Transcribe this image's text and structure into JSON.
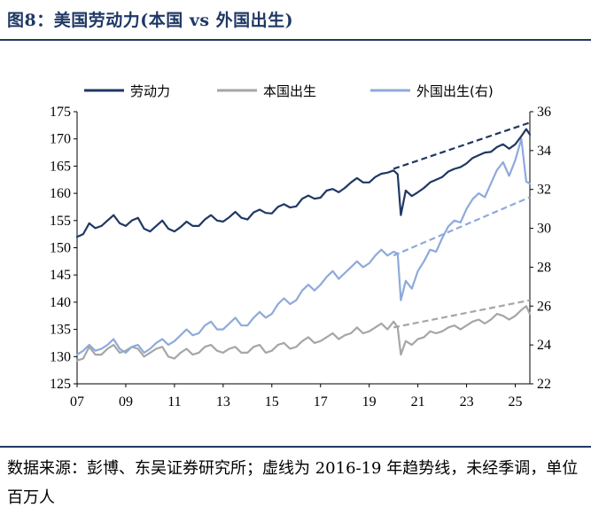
{
  "figure": {
    "title": "图8：美国劳动力(本国 vs 外国出生)",
    "source": "数据来源：彭博、东吴证券研究所；虚线为 2016-19 年趋势线，未经季调，单位百万人"
  },
  "colors": {
    "labor_force": "#1f3864",
    "native": "#a6a6a6",
    "foreign": "#8eaadb",
    "rule": "#1f3864"
  },
  "chart_data": {
    "type": "line",
    "title": "",
    "x_ticks": [
      "07",
      "09",
      "11",
      "13",
      "15",
      "17",
      "19",
      "21",
      "23",
      "25"
    ],
    "x_tick_years": [
      2007,
      2009,
      2011,
      2013,
      2015,
      2017,
      2019,
      2021,
      2023,
      2025
    ],
    "xlim": [
      2007,
      2025.6
    ],
    "y_left": {
      "ticks": [
        125,
        130,
        135,
        140,
        145,
        150,
        155,
        160,
        165,
        170,
        175
      ],
      "lim": [
        125,
        175
      ]
    },
    "y_right": {
      "ticks": [
        22,
        24,
        26,
        28,
        30,
        32,
        34,
        36
      ],
      "lim": [
        22,
        36
      ]
    },
    "legend_position": "top",
    "series": [
      {
        "name": "劳动力",
        "axis": "left",
        "x": [
          2007.0,
          2007.25,
          2007.5,
          2007.75,
          2008.0,
          2008.25,
          2008.5,
          2008.75,
          2009.0,
          2009.25,
          2009.5,
          2009.75,
          2010.0,
          2010.25,
          2010.5,
          2010.75,
          2011.0,
          2011.25,
          2011.5,
          2011.75,
          2012.0,
          2012.25,
          2012.5,
          2012.75,
          2013.0,
          2013.25,
          2013.5,
          2013.75,
          2014.0,
          2014.25,
          2014.5,
          2014.75,
          2015.0,
          2015.25,
          2015.5,
          2015.75,
          2016.0,
          2016.25,
          2016.5,
          2016.75,
          2017.0,
          2017.25,
          2017.5,
          2017.75,
          2018.0,
          2018.25,
          2018.5,
          2018.75,
          2019.0,
          2019.25,
          2019.5,
          2019.75,
          2020.0,
          2020.17,
          2020.3,
          2020.5,
          2020.75,
          2021.0,
          2021.25,
          2021.5,
          2021.75,
          2022.0,
          2022.25,
          2022.5,
          2022.75,
          2023.0,
          2023.25,
          2023.5,
          2023.75,
          2024.0,
          2024.25,
          2024.5,
          2024.75,
          2025.0,
          2025.25,
          2025.45,
          2025.6
        ],
        "values": [
          152.0,
          152.5,
          154.5,
          153.6,
          154.0,
          155.0,
          156.0,
          154.5,
          154.0,
          155.0,
          155.5,
          153.5,
          153.0,
          154.0,
          155.0,
          153.5,
          153.0,
          153.8,
          154.8,
          154.0,
          154.0,
          155.2,
          156.0,
          155.0,
          154.8,
          155.6,
          156.6,
          155.5,
          155.2,
          156.5,
          157.0,
          156.4,
          156.3,
          157.5,
          158.0,
          157.4,
          157.6,
          159.0,
          159.6,
          159.0,
          159.2,
          160.5,
          160.8,
          160.2,
          161.0,
          162.0,
          162.8,
          162.0,
          162.0,
          163.0,
          163.6,
          163.8,
          164.2,
          163.5,
          156.0,
          160.5,
          159.5,
          160.2,
          161.0,
          162.0,
          162.5,
          163.0,
          164.0,
          164.5,
          164.8,
          165.5,
          166.5,
          167.0,
          167.5,
          167.6,
          168.5,
          169.0,
          168.2,
          169.0,
          170.5,
          171.8,
          170.8
        ]
      },
      {
        "name": "本国出生",
        "axis": "right",
        "x": [
          2007.0,
          2007.25,
          2007.5,
          2007.75,
          2008.0,
          2008.25,
          2008.5,
          2008.75,
          2009.0,
          2009.25,
          2009.5,
          2009.75,
          2010.0,
          2010.25,
          2010.5,
          2010.75,
          2011.0,
          2011.25,
          2011.5,
          2011.75,
          2012.0,
          2012.25,
          2012.5,
          2012.75,
          2013.0,
          2013.25,
          2013.5,
          2013.75,
          2014.0,
          2014.25,
          2014.5,
          2014.75,
          2015.0,
          2015.25,
          2015.5,
          2015.75,
          2016.0,
          2016.25,
          2016.5,
          2016.75,
          2017.0,
          2017.25,
          2017.5,
          2017.75,
          2018.0,
          2018.25,
          2018.5,
          2018.75,
          2019.0,
          2019.25,
          2019.5,
          2019.75,
          2020.0,
          2020.17,
          2020.3,
          2020.5,
          2020.75,
          2021.0,
          2021.25,
          2021.5,
          2021.75,
          2022.0,
          2022.25,
          2022.5,
          2022.75,
          2023.0,
          2023.25,
          2023.5,
          2023.75,
          2024.0,
          2024.25,
          2024.5,
          2024.75,
          2025.0,
          2025.25,
          2025.45,
          2025.6
        ],
        "values": [
          23.2,
          23.3,
          23.9,
          23.5,
          23.5,
          23.8,
          24.0,
          23.6,
          23.7,
          23.9,
          23.8,
          23.4,
          23.6,
          23.8,
          23.9,
          23.4,
          23.3,
          23.6,
          23.8,
          23.5,
          23.6,
          23.9,
          24.0,
          23.7,
          23.6,
          23.8,
          23.9,
          23.6,
          23.6,
          23.9,
          24.0,
          23.6,
          23.7,
          24.0,
          24.1,
          23.8,
          23.9,
          24.2,
          24.4,
          24.1,
          24.2,
          24.4,
          24.6,
          24.3,
          24.5,
          24.6,
          24.9,
          24.6,
          24.7,
          24.9,
          25.1,
          24.8,
          25.2,
          24.9,
          23.5,
          24.2,
          24.0,
          24.3,
          24.4,
          24.7,
          24.6,
          24.7,
          24.9,
          25.0,
          24.8,
          25.0,
          25.2,
          25.3,
          25.1,
          25.3,
          25.6,
          25.5,
          25.3,
          25.5,
          25.8,
          26.0,
          25.6
        ]
      },
      {
        "name": "外国出生(右)",
        "axis": "right",
        "x": [
          2007.0,
          2007.25,
          2007.5,
          2007.75,
          2008.0,
          2008.25,
          2008.5,
          2008.75,
          2009.0,
          2009.25,
          2009.5,
          2009.75,
          2010.0,
          2010.25,
          2010.5,
          2010.75,
          2011.0,
          2011.25,
          2011.5,
          2011.75,
          2012.0,
          2012.25,
          2012.5,
          2012.75,
          2013.0,
          2013.25,
          2013.5,
          2013.75,
          2014.0,
          2014.25,
          2014.5,
          2014.75,
          2015.0,
          2015.25,
          2015.5,
          2015.75,
          2016.0,
          2016.25,
          2016.5,
          2016.75,
          2017.0,
          2017.25,
          2017.5,
          2017.75,
          2018.0,
          2018.25,
          2018.5,
          2018.75,
          2019.0,
          2019.25,
          2019.5,
          2019.75,
          2020.0,
          2020.17,
          2020.3,
          2020.5,
          2020.75,
          2021.0,
          2021.25,
          2021.5,
          2021.75,
          2022.0,
          2022.25,
          2022.5,
          2022.75,
          2023.0,
          2023.25,
          2023.5,
          2023.75,
          2024.0,
          2024.25,
          2024.5,
          2024.75,
          2025.0,
          2025.25,
          2025.45,
          2025.6
        ],
        "values": [
          23.5,
          23.7,
          24.0,
          23.7,
          23.8,
          24.0,
          24.3,
          23.8,
          23.6,
          23.9,
          24.0,
          23.6,
          23.8,
          24.1,
          24.3,
          24.0,
          24.2,
          24.5,
          24.8,
          24.5,
          24.6,
          25.0,
          25.2,
          24.8,
          24.8,
          25.1,
          25.4,
          25.0,
          25.0,
          25.4,
          25.7,
          25.4,
          25.6,
          26.1,
          26.4,
          26.1,
          26.3,
          26.8,
          27.1,
          26.8,
          27.1,
          27.5,
          27.8,
          27.4,
          27.7,
          28.0,
          28.3,
          28.0,
          28.2,
          28.6,
          28.9,
          28.6,
          28.8,
          28.7,
          26.3,
          27.3,
          26.9,
          27.8,
          28.3,
          28.9,
          28.8,
          29.5,
          30.1,
          30.4,
          30.3,
          31.0,
          31.5,
          31.8,
          31.6,
          32.3,
          33.0,
          33.4,
          32.7,
          33.5,
          34.6,
          32.4,
          32.3
        ]
      }
    ],
    "trend_lines": [
      {
        "name": "劳动力",
        "axis": "left",
        "x": [
          2020.0,
          2025.6
        ],
        "values": [
          164.5,
          173.0
        ]
      },
      {
        "name": "本国出生",
        "axis": "right",
        "x": [
          2020.0,
          2025.6
        ],
        "values": [
          24.9,
          26.3
        ]
      },
      {
        "name": "外国出生(右)",
        "axis": "right",
        "x": [
          2020.0,
          2025.6
        ],
        "values": [
          28.6,
          31.6
        ]
      }
    ]
  }
}
